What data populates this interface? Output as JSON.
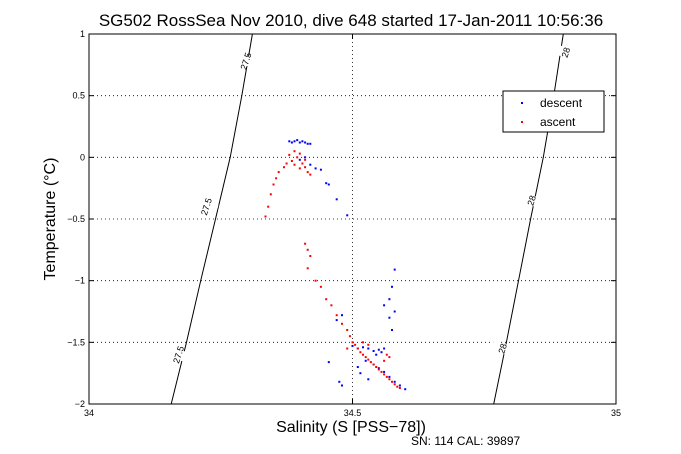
{
  "chart_data": {
    "type": "scatter",
    "title": "SG502 RossSea Nov 2010, dive 648 started 17-Jan-2011 10:56:36",
    "xlabel": "Salinity (S [PSS−78])",
    "ylabel": "Temperature (°C)",
    "xlim": [
      34,
      35
    ],
    "ylim": [
      -2,
      1
    ],
    "xticks": [
      34,
      34.5,
      35
    ],
    "xtick_labels": [
      "34",
      "34.5",
      "35"
    ],
    "yticks": [
      -2,
      -1.5,
      -1,
      -0.5,
      0,
      0.5,
      1
    ],
    "ytick_labels": [
      "−2",
      "−1.5",
      "−1",
      "−0.5",
      "0",
      "0.5",
      "1"
    ],
    "grid": true,
    "legend_position": "top-right",
    "contours": [
      {
        "label": "27.5",
        "points": [
          [
            34.156,
            -2
          ],
          [
            34.185,
            -1.5
          ],
          [
            34.212,
            -1
          ],
          [
            34.24,
            -0.5
          ],
          [
            34.268,
            0
          ],
          [
            34.29,
            0.5
          ],
          [
            34.31,
            1
          ]
        ],
        "label_positions": [
          [
            34.17,
            -1.6
          ],
          [
            34.223,
            -0.4
          ],
          [
            34.298,
            0.78
          ]
        ]
      },
      {
        "label": "28",
        "points": [
          [
            34.768,
            -2
          ],
          [
            34.792,
            -1.5
          ],
          [
            34.815,
            -1
          ],
          [
            34.838,
            -0.5
          ],
          [
            34.862,
            0
          ],
          [
            34.882,
            0.5
          ],
          [
            34.9,
            1
          ]
        ],
        "label_positions": [
          [
            34.785,
            -1.55
          ],
          [
            34.84,
            -0.35
          ],
          [
            34.905,
            0.85
          ]
        ]
      }
    ],
    "series": [
      {
        "name": "descent",
        "color": "#0000ff",
        "points": [
          [
            34.38,
            0.13
          ],
          [
            34.39,
            0.13
          ],
          [
            34.4,
            0.12
          ],
          [
            34.41,
            0.12
          ],
          [
            34.42,
            0.11
          ],
          [
            34.385,
            0.12
          ],
          [
            34.395,
            0.14
          ],
          [
            34.405,
            0.13
          ],
          [
            34.415,
            0.11
          ],
          [
            34.41,
            0.0
          ],
          [
            34.4,
            -0.02
          ],
          [
            34.42,
            -0.06
          ],
          [
            34.43,
            -0.09
          ],
          [
            34.44,
            -0.1
          ],
          [
            34.45,
            -0.21
          ],
          [
            34.455,
            -0.22
          ],
          [
            34.47,
            -0.34
          ],
          [
            34.49,
            -0.47
          ],
          [
            34.58,
            -0.91
          ],
          [
            34.575,
            -1.05
          ],
          [
            34.57,
            -1.15
          ],
          [
            34.56,
            -1.2
          ],
          [
            34.58,
            -1.25
          ],
          [
            34.57,
            -1.3
          ],
          [
            34.575,
            -1.4
          ],
          [
            34.48,
            -1.28
          ],
          [
            34.47,
            -1.32
          ],
          [
            34.5,
            -1.53
          ],
          [
            34.51,
            -1.55
          ],
          [
            34.52,
            -1.54
          ],
          [
            34.53,
            -1.55
          ],
          [
            34.54,
            -1.57
          ],
          [
            34.55,
            -1.56
          ],
          [
            34.56,
            -1.55
          ],
          [
            34.555,
            -1.58
          ],
          [
            34.545,
            -1.6
          ],
          [
            34.525,
            -1.65
          ],
          [
            34.51,
            -1.7
          ],
          [
            34.54,
            -1.68
          ],
          [
            34.55,
            -1.71
          ],
          [
            34.56,
            -1.74
          ],
          [
            34.57,
            -1.78
          ],
          [
            34.58,
            -1.82
          ],
          [
            34.59,
            -1.85
          ],
          [
            34.6,
            -1.88
          ],
          [
            34.515,
            -1.75
          ],
          [
            34.53,
            -1.8
          ],
          [
            34.455,
            -1.66
          ],
          [
            34.475,
            -1.82
          ],
          [
            34.48,
            -1.85
          ]
        ]
      },
      {
        "name": "ascent",
        "color": "#ff0000",
        "points": [
          [
            34.39,
            0.05
          ],
          [
            34.4,
            0.03
          ],
          [
            34.395,
            0.0
          ],
          [
            34.41,
            -0.02
          ],
          [
            34.405,
            -0.05
          ],
          [
            34.41,
            -0.08
          ],
          [
            34.415,
            -0.12
          ],
          [
            34.42,
            -0.14
          ],
          [
            34.4,
            -0.09
          ],
          [
            34.39,
            -0.06
          ],
          [
            34.385,
            -0.03
          ],
          [
            34.38,
            0.02
          ],
          [
            34.375,
            -0.05
          ],
          [
            34.37,
            -0.08
          ],
          [
            34.36,
            -0.12
          ],
          [
            34.355,
            -0.17
          ],
          [
            34.35,
            -0.22
          ],
          [
            34.345,
            -0.3
          ],
          [
            34.34,
            -0.4
          ],
          [
            34.335,
            -0.48
          ],
          [
            34.41,
            -0.7
          ],
          [
            34.415,
            -0.75
          ],
          [
            34.42,
            -0.8
          ],
          [
            34.415,
            -0.9
          ],
          [
            34.43,
            -1.0
          ],
          [
            34.44,
            -1.05
          ],
          [
            34.45,
            -1.15
          ],
          [
            34.46,
            -1.2
          ],
          [
            34.47,
            -1.28
          ],
          [
            34.48,
            -1.35
          ],
          [
            34.49,
            -1.4
          ],
          [
            34.495,
            -1.45
          ],
          [
            34.5,
            -1.5
          ],
          [
            34.505,
            -1.52
          ],
          [
            34.51,
            -1.55
          ],
          [
            34.515,
            -1.58
          ],
          [
            34.52,
            -1.6
          ],
          [
            34.525,
            -1.62
          ],
          [
            34.53,
            -1.64
          ],
          [
            34.535,
            -1.66
          ],
          [
            34.54,
            -1.68
          ],
          [
            34.545,
            -1.7
          ],
          [
            34.55,
            -1.72
          ],
          [
            34.555,
            -1.74
          ],
          [
            34.56,
            -1.76
          ],
          [
            34.565,
            -1.78
          ],
          [
            34.57,
            -1.8
          ],
          [
            34.575,
            -1.82
          ],
          [
            34.58,
            -1.84
          ],
          [
            34.585,
            -1.86
          ],
          [
            34.59,
            -1.87
          ],
          [
            34.565,
            -1.6
          ],
          [
            34.57,
            -1.62
          ],
          [
            34.56,
            -1.65
          ],
          [
            34.52,
            -1.5
          ],
          [
            34.53,
            -1.52
          ],
          [
            34.49,
            -1.55
          ]
        ]
      }
    ]
  },
  "footer": {
    "serial": "SN: 114  CAL: 39897"
  }
}
